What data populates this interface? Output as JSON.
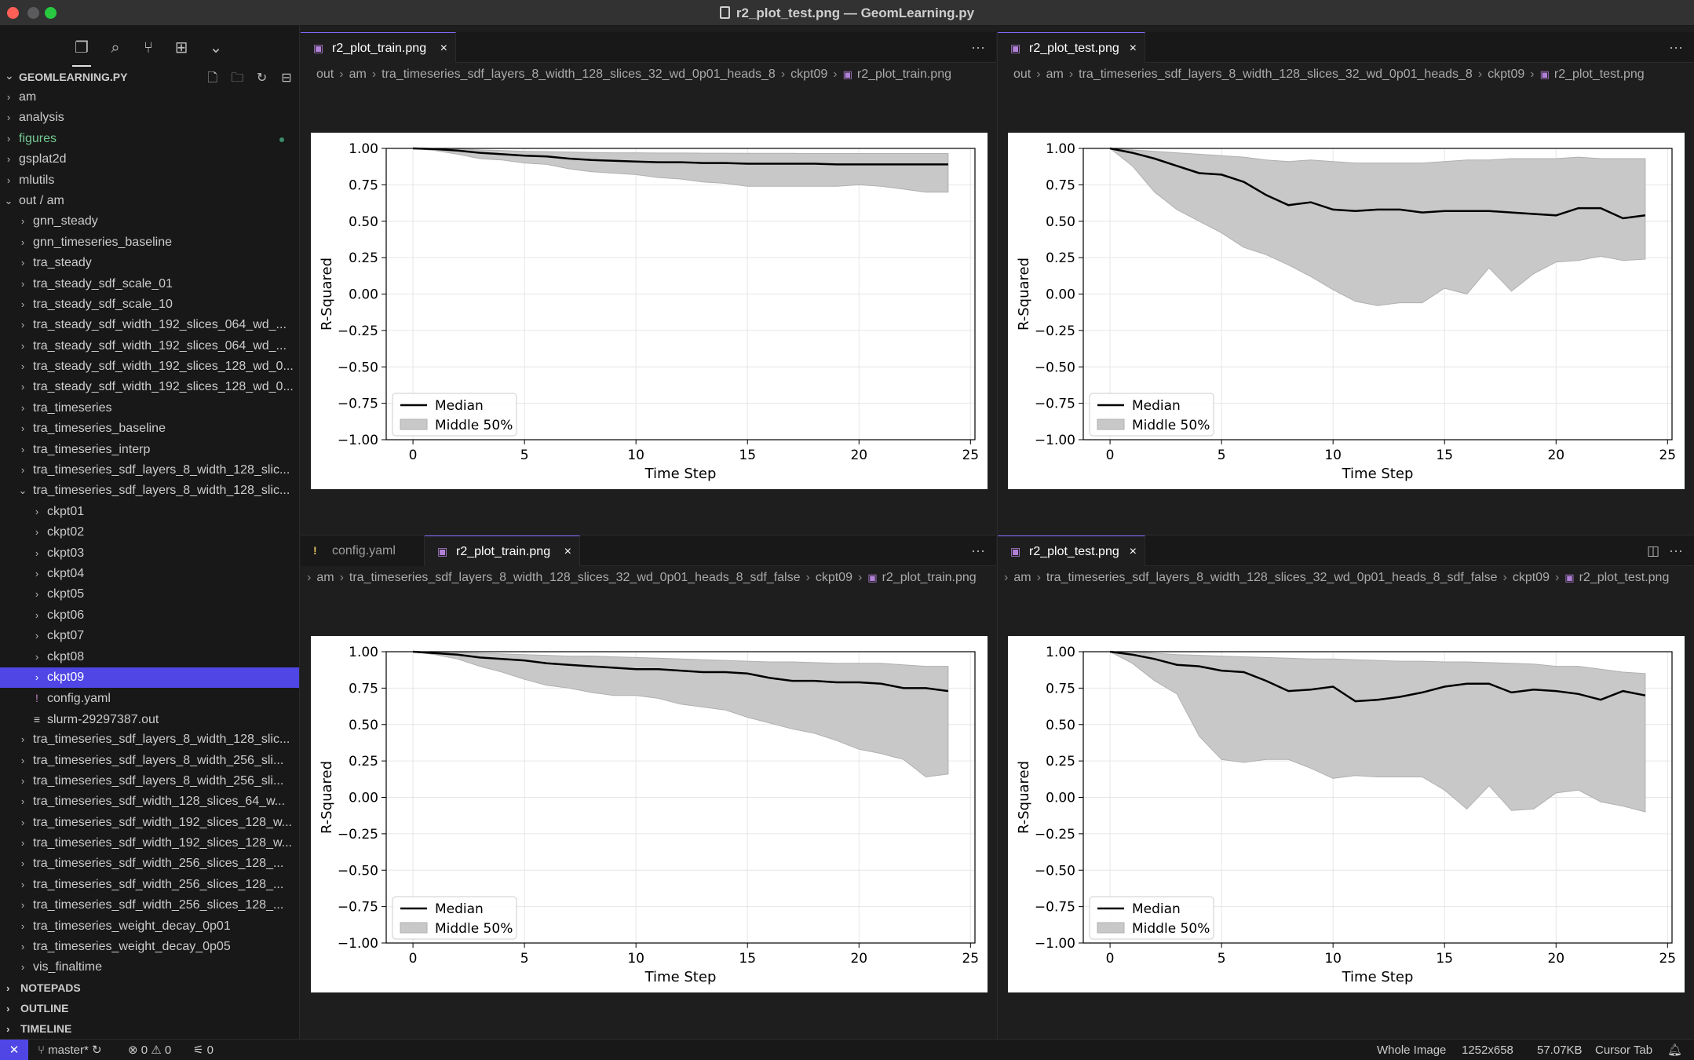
{
  "window": {
    "title": "r2_plot_test.png — GeomLearning.py"
  },
  "activity_bar": {
    "icons": [
      "files-icon",
      "search-icon",
      "source-control-icon",
      "extensions-icon",
      "more-chevron-icon"
    ]
  },
  "explorer": {
    "title": "GEOMLEARNING.PY",
    "rows": [
      {
        "label": "am",
        "depth": 0,
        "kind": "folder",
        "open": false
      },
      {
        "label": "analysis",
        "depth": 0,
        "kind": "folder",
        "open": false
      },
      {
        "label": "figures",
        "depth": 0,
        "kind": "folder",
        "open": false,
        "modified": true
      },
      {
        "label": "gsplat2d",
        "depth": 0,
        "kind": "folder",
        "open": false
      },
      {
        "label": "mlutils",
        "depth": 0,
        "kind": "folder",
        "open": false
      },
      {
        "label": "out / am",
        "depth": 0,
        "kind": "folder",
        "open": true
      },
      {
        "label": "gnn_steady",
        "depth": 1,
        "kind": "folder",
        "open": false
      },
      {
        "label": "gnn_timeseries_baseline",
        "depth": 1,
        "kind": "folder",
        "open": false
      },
      {
        "label": "tra_steady",
        "depth": 1,
        "kind": "folder",
        "open": false
      },
      {
        "label": "tra_steady_sdf_scale_01",
        "depth": 1,
        "kind": "folder",
        "open": false
      },
      {
        "label": "tra_steady_sdf_scale_10",
        "depth": 1,
        "kind": "folder",
        "open": false
      },
      {
        "label": "tra_steady_sdf_width_192_slices_064_wd_...",
        "depth": 1,
        "kind": "folder",
        "open": false
      },
      {
        "label": "tra_steady_sdf_width_192_slices_064_wd_...",
        "depth": 1,
        "kind": "folder",
        "open": false
      },
      {
        "label": "tra_steady_sdf_width_192_slices_128_wd_0...",
        "depth": 1,
        "kind": "folder",
        "open": false
      },
      {
        "label": "tra_steady_sdf_width_192_slices_128_wd_0...",
        "depth": 1,
        "kind": "folder",
        "open": false
      },
      {
        "label": "tra_timeseries",
        "depth": 1,
        "kind": "folder",
        "open": false
      },
      {
        "label": "tra_timeseries_baseline",
        "depth": 1,
        "kind": "folder",
        "open": false
      },
      {
        "label": "tra_timeseries_interp",
        "depth": 1,
        "kind": "folder",
        "open": false
      },
      {
        "label": "tra_timeseries_sdf_layers_8_width_128_slic...",
        "depth": 1,
        "kind": "folder",
        "open": false
      },
      {
        "label": "tra_timeseries_sdf_layers_8_width_128_slic...",
        "depth": 1,
        "kind": "folder",
        "open": true
      },
      {
        "label": "ckpt01",
        "depth": 2,
        "kind": "folder",
        "open": false
      },
      {
        "label": "ckpt02",
        "depth": 2,
        "kind": "folder",
        "open": false
      },
      {
        "label": "ckpt03",
        "depth": 2,
        "kind": "folder",
        "open": false
      },
      {
        "label": "ckpt04",
        "depth": 2,
        "kind": "folder",
        "open": false
      },
      {
        "label": "ckpt05",
        "depth": 2,
        "kind": "folder",
        "open": false
      },
      {
        "label": "ckpt06",
        "depth": 2,
        "kind": "folder",
        "open": false
      },
      {
        "label": "ckpt07",
        "depth": 2,
        "kind": "folder",
        "open": false
      },
      {
        "label": "ckpt08",
        "depth": 2,
        "kind": "folder",
        "open": false
      },
      {
        "label": "ckpt09",
        "depth": 2,
        "kind": "folder",
        "open": false,
        "selected": true
      },
      {
        "label": "config.yaml",
        "depth": 2,
        "kind": "yaml"
      },
      {
        "label": "slurm-29297387.out",
        "depth": 2,
        "kind": "text"
      },
      {
        "label": "tra_timeseries_sdf_layers_8_width_128_slic...",
        "depth": 1,
        "kind": "folder",
        "open": false
      },
      {
        "label": "tra_timeseries_sdf_layers_8_width_256_sli...",
        "depth": 1,
        "kind": "folder",
        "open": false
      },
      {
        "label": "tra_timeseries_sdf_layers_8_width_256_sli...",
        "depth": 1,
        "kind": "folder",
        "open": false
      },
      {
        "label": "tra_timeseries_sdf_width_128_slices_64_w...",
        "depth": 1,
        "kind": "folder",
        "open": false
      },
      {
        "label": "tra_timeseries_sdf_width_192_slices_128_w...",
        "depth": 1,
        "kind": "folder",
        "open": false
      },
      {
        "label": "tra_timeseries_sdf_width_192_slices_128_w...",
        "depth": 1,
        "kind": "folder",
        "open": false
      },
      {
        "label": "tra_timeseries_sdf_width_256_slices_128_...",
        "depth": 1,
        "kind": "folder",
        "open": false
      },
      {
        "label": "tra_timeseries_sdf_width_256_slices_128_...",
        "depth": 1,
        "kind": "folder",
        "open": false
      },
      {
        "label": "tra_timeseries_sdf_width_256_slices_128_...",
        "depth": 1,
        "kind": "folder",
        "open": false
      },
      {
        "label": "tra_timeseries_weight_decay_0p01",
        "depth": 1,
        "kind": "folder",
        "open": false
      },
      {
        "label": "tra_timeseries_weight_decay_0p05",
        "depth": 1,
        "kind": "folder",
        "open": false
      },
      {
        "label": "vis_finaltime",
        "depth": 1,
        "kind": "folder",
        "open": false
      }
    ],
    "sections": [
      "NOTEPADS",
      "OUTLINE",
      "TIMELINE"
    ]
  },
  "groups": [
    {
      "tabs": [
        {
          "label": "r2_plot_train.png",
          "active": true,
          "kind": "image",
          "close": true
        }
      ],
      "breadcrumb": [
        "out",
        "am",
        "tra_timeseries_sdf_layers_8_width_128_slices_32_wd_0p01_heads_8",
        "ckpt09",
        "r2_plot_train.png"
      ]
    },
    {
      "tabs": [
        {
          "label": "r2_plot_test.png",
          "active": true,
          "kind": "image",
          "close": true
        }
      ],
      "breadcrumb": [
        "out",
        "am",
        "tra_timeseries_sdf_layers_8_width_128_slices_32_wd_0p01_heads_8",
        "ckpt09",
        "r2_plot_test.png"
      ]
    },
    {
      "tabs": [
        {
          "label": "config.yaml",
          "active": false,
          "kind": "yaml",
          "close": false
        },
        {
          "label": "r2_plot_train.png",
          "active": true,
          "kind": "image",
          "close": true
        }
      ],
      "breadcrumb": [
        "am",
        "tra_timeseries_sdf_layers_8_width_128_slices_32_wd_0p01_heads_8_sdf_false",
        "ckpt09",
        "r2_plot_train.png"
      ]
    },
    {
      "tabs": [
        {
          "label": "r2_plot_test.png",
          "active": true,
          "kind": "image",
          "close": true
        }
      ],
      "breadcrumb": [
        "am",
        "tra_timeseries_sdf_layers_8_width_128_slices_32_wd_0p01_heads_8_sdf_false",
        "ckpt09",
        "r2_plot_test.png"
      ]
    }
  ],
  "chart_data": [
    {
      "type": "area",
      "xlabel": "Time Step",
      "ylabel": "R-Squared",
      "xlim": [
        -1.2,
        25.2
      ],
      "ylim": [
        -1.0,
        1.0
      ],
      "xticks": [
        "0",
        "5",
        "10",
        "15",
        "20",
        "25"
      ],
      "yticks": [
        "1.00",
        "0.75",
        "0.50",
        "0.25",
        "0.00",
        "−0.25",
        "−0.50",
        "−0.75",
        "−1.00"
      ],
      "legend": [
        "Median",
        "Middle 50%"
      ],
      "x": [
        0,
        1,
        2,
        3,
        4,
        5,
        6,
        7,
        8,
        9,
        10,
        11,
        12,
        13,
        14,
        15,
        16,
        17,
        18,
        19,
        20,
        21,
        22,
        23,
        24
      ],
      "series": [
        {
          "name": "Median",
          "values": [
            1.0,
            0.995,
            0.985,
            0.97,
            0.96,
            0.95,
            0.945,
            0.93,
            0.92,
            0.915,
            0.91,
            0.905,
            0.905,
            0.9,
            0.9,
            0.895,
            0.895,
            0.895,
            0.895,
            0.89,
            0.89,
            0.89,
            0.89,
            0.89,
            0.89
          ]
        },
        {
          "name": "Middle 50% upper",
          "values": [
            1.0,
            0.998,
            0.995,
            0.99,
            0.985,
            0.98,
            0.978,
            0.975,
            0.972,
            0.97,
            0.97,
            0.968,
            0.968,
            0.967,
            0.967,
            0.966,
            0.966,
            0.966,
            0.965,
            0.965,
            0.965,
            0.965,
            0.965,
            0.965,
            0.965
          ]
        },
        {
          "name": "Middle 50% lower",
          "values": [
            1.0,
            0.985,
            0.96,
            0.93,
            0.92,
            0.9,
            0.89,
            0.86,
            0.84,
            0.83,
            0.82,
            0.8,
            0.79,
            0.77,
            0.76,
            0.74,
            0.74,
            0.74,
            0.74,
            0.74,
            0.75,
            0.74,
            0.72,
            0.7,
            0.7
          ]
        }
      ]
    },
    {
      "type": "area",
      "xlabel": "Time Step",
      "ylabel": "R-Squared",
      "xlim": [
        -1.2,
        25.2
      ],
      "ylim": [
        -1.0,
        1.0
      ],
      "xticks": [
        "0",
        "5",
        "10",
        "15",
        "20",
        "25"
      ],
      "yticks": [
        "1.00",
        "0.75",
        "0.50",
        "0.25",
        "0.00",
        "−0.25",
        "−0.50",
        "−0.75",
        "−1.00"
      ],
      "legend": [
        "Median",
        "Middle 50%"
      ],
      "x": [
        0,
        1,
        2,
        3,
        4,
        5,
        6,
        7,
        8,
        9,
        10,
        11,
        12,
        13,
        14,
        15,
        16,
        17,
        18,
        19,
        20,
        21,
        22,
        23,
        24
      ],
      "series": [
        {
          "name": "Median",
          "values": [
            1.0,
            0.97,
            0.93,
            0.88,
            0.83,
            0.82,
            0.77,
            0.68,
            0.61,
            0.63,
            0.58,
            0.57,
            0.58,
            0.58,
            0.56,
            0.57,
            0.57,
            0.57,
            0.56,
            0.55,
            0.54,
            0.59,
            0.59,
            0.52,
            0.54
          ]
        },
        {
          "name": "Middle 50% upper",
          "values": [
            1.0,
            0.99,
            0.98,
            0.97,
            0.96,
            0.95,
            0.94,
            0.92,
            0.91,
            0.92,
            0.91,
            0.9,
            0.9,
            0.9,
            0.9,
            0.91,
            0.92,
            0.92,
            0.93,
            0.93,
            0.93,
            0.94,
            0.93,
            0.93,
            0.93
          ]
        },
        {
          "name": "Middle 50% lower",
          "values": [
            1.0,
            0.88,
            0.7,
            0.58,
            0.5,
            0.42,
            0.32,
            0.27,
            0.2,
            0.12,
            0.03,
            -0.05,
            -0.08,
            -0.06,
            -0.06,
            0.04,
            0.0,
            0.18,
            0.02,
            0.14,
            0.22,
            0.23,
            0.26,
            0.23,
            0.24
          ]
        }
      ]
    },
    {
      "type": "area",
      "xlabel": "Time Step",
      "ylabel": "R-Squared",
      "xlim": [
        -1.2,
        25.2
      ],
      "ylim": [
        -1.0,
        1.0
      ],
      "xticks": [
        "0",
        "5",
        "10",
        "15",
        "20",
        "25"
      ],
      "yticks": [
        "1.00",
        "0.75",
        "0.50",
        "0.25",
        "0.00",
        "−0.25",
        "−0.50",
        "−0.75",
        "−1.00"
      ],
      "legend": [
        "Median",
        "Middle 50%"
      ],
      "x": [
        0,
        1,
        2,
        3,
        4,
        5,
        6,
        7,
        8,
        9,
        10,
        11,
        12,
        13,
        14,
        15,
        16,
        17,
        18,
        19,
        20,
        21,
        22,
        23,
        24
      ],
      "series": [
        {
          "name": "Median",
          "values": [
            1.0,
            0.99,
            0.98,
            0.96,
            0.95,
            0.94,
            0.92,
            0.91,
            0.9,
            0.89,
            0.88,
            0.88,
            0.87,
            0.86,
            0.86,
            0.85,
            0.82,
            0.8,
            0.8,
            0.79,
            0.79,
            0.78,
            0.75,
            0.75,
            0.73
          ]
        },
        {
          "name": "Middle 50% upper",
          "values": [
            1.0,
            1.0,
            0.995,
            0.99,
            0.985,
            0.98,
            0.975,
            0.97,
            0.97,
            0.965,
            0.96,
            0.955,
            0.95,
            0.945,
            0.94,
            0.935,
            0.93,
            0.93,
            0.925,
            0.92,
            0.92,
            0.92,
            0.91,
            0.9,
            0.9
          ]
        },
        {
          "name": "Middle 50% lower",
          "values": [
            1.0,
            0.98,
            0.95,
            0.9,
            0.86,
            0.81,
            0.77,
            0.75,
            0.72,
            0.7,
            0.7,
            0.68,
            0.64,
            0.62,
            0.6,
            0.55,
            0.51,
            0.47,
            0.44,
            0.39,
            0.33,
            0.3,
            0.26,
            0.14,
            0.16
          ]
        }
      ]
    },
    {
      "type": "area",
      "xlabel": "Time Step",
      "ylabel": "R-Squared",
      "xlim": [
        -1.2,
        25.2
      ],
      "ylim": [
        -1.0,
        1.0
      ],
      "xticks": [
        "0",
        "5",
        "10",
        "15",
        "20",
        "25"
      ],
      "yticks": [
        "1.00",
        "0.75",
        "0.50",
        "0.25",
        "0.00",
        "−0.25",
        "−0.50",
        "−0.75",
        "−1.00"
      ],
      "legend": [
        "Median",
        "Middle 50%"
      ],
      "x": [
        0,
        1,
        2,
        3,
        4,
        5,
        6,
        7,
        8,
        9,
        10,
        11,
        12,
        13,
        14,
        15,
        16,
        17,
        18,
        19,
        20,
        21,
        22,
        23,
        24
      ],
      "series": [
        {
          "name": "Median",
          "values": [
            1.0,
            0.98,
            0.95,
            0.91,
            0.9,
            0.87,
            0.86,
            0.8,
            0.73,
            0.74,
            0.76,
            0.66,
            0.67,
            0.69,
            0.72,
            0.76,
            0.78,
            0.78,
            0.72,
            0.74,
            0.73,
            0.71,
            0.67,
            0.73,
            0.7
          ]
        },
        {
          "name": "Middle 50% upper",
          "values": [
            1.0,
            1.0,
            0.99,
            0.98,
            0.975,
            0.97,
            0.965,
            0.96,
            0.955,
            0.95,
            0.95,
            0.945,
            0.94,
            0.935,
            0.935,
            0.93,
            0.93,
            0.925,
            0.92,
            0.915,
            0.9,
            0.9,
            0.88,
            0.86,
            0.85
          ]
        },
        {
          "name": "Middle 50% lower",
          "values": [
            1.0,
            0.92,
            0.8,
            0.71,
            0.42,
            0.26,
            0.24,
            0.26,
            0.26,
            0.2,
            0.13,
            0.15,
            0.14,
            0.14,
            0.14,
            0.05,
            -0.08,
            0.08,
            -0.09,
            -0.08,
            0.03,
            0.05,
            -0.03,
            -0.06,
            -0.1
          ]
        }
      ]
    }
  ],
  "status_bar": {
    "branch": "master*",
    "errors": "0",
    "warnings": "0",
    "ports": "0",
    "right": [
      "Whole Image",
      "1252x658",
      "57.07KB",
      "Cursor Tab"
    ]
  },
  "colors": {
    "accent": "#4f46e5",
    "band": "#c8c8c8",
    "band_edge": "#b0b0b0",
    "median": "#000000"
  }
}
